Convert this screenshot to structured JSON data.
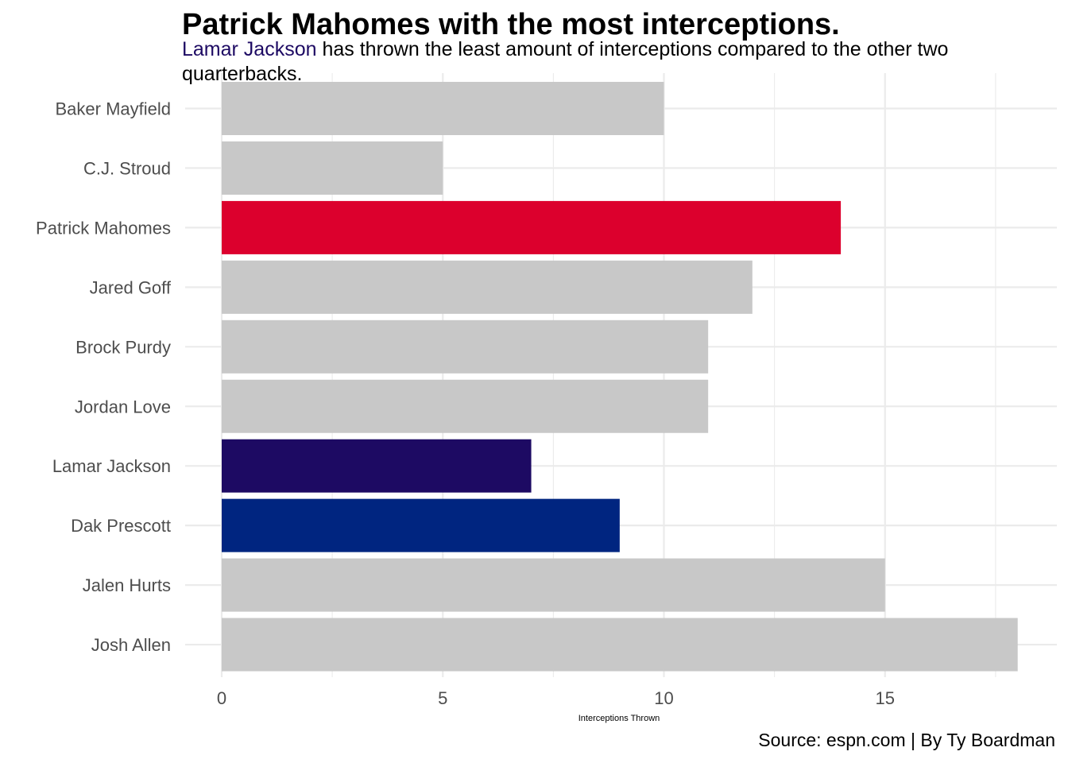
{
  "chart_data": {
    "type": "bar",
    "orientation": "horizontal",
    "title": "Patrick Mahomes with the most interceptions.",
    "subtitle": {
      "highlight": "Lamar Jackson",
      "rest": " has thrown the least amount of interceptions compared to the other two quarterbacks."
    },
    "caption": "Source: espn.com | By Ty Boardman",
    "xlabel": "Interceptions Thrown",
    "ylabel": "",
    "xlim": [
      0,
      18
    ],
    "xticks": [
      0,
      5,
      10,
      15
    ],
    "grid": true,
    "legend": "none",
    "categories": [
      "Baker Mayfield",
      "C.J. Stroud",
      "Patrick Mahomes",
      "Jared Goff",
      "Brock Purdy",
      "Jordan Love",
      "Lamar Jackson",
      "Dak Prescott",
      "Jalen Hurts",
      "Josh Allen"
    ],
    "values": [
      10,
      5,
      14,
      12,
      11,
      11,
      7,
      9,
      15,
      18
    ],
    "colors": [
      "#c8c8c8",
      "#c8c8c8",
      "#dc002d",
      "#c8c8c8",
      "#c8c8c8",
      "#c8c8c8",
      "#1d0a63",
      "#002580",
      "#c8c8c8",
      "#c8c8c8"
    ],
    "highlight_color": "#1d0a63"
  }
}
